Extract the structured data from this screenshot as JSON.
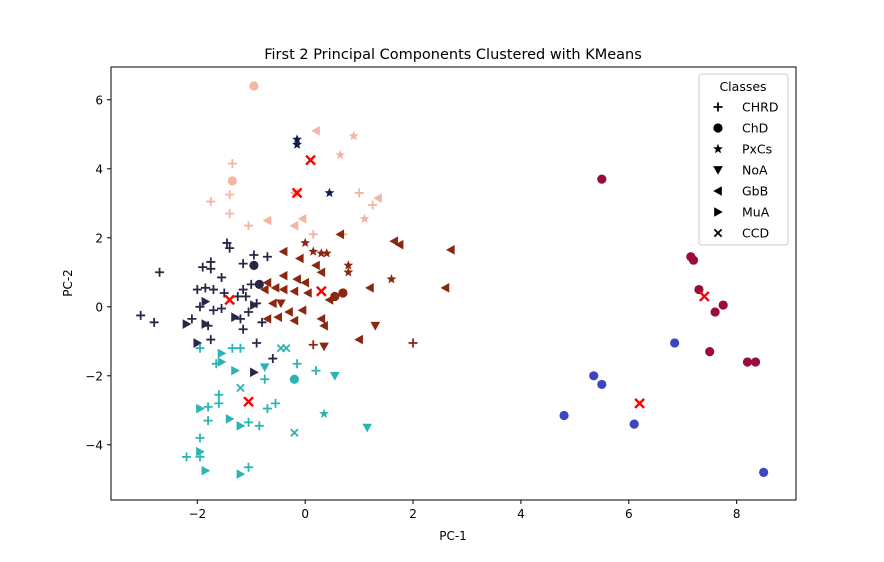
{
  "chart_data": {
    "type": "scatter",
    "title": "First 2 Principal Components Clustered with KMeans",
    "xlabel": "PC-1",
    "ylabel": "PC-2",
    "xlim": [
      -3.6,
      9.1
    ],
    "ylim": [
      -5.6,
      6.95
    ],
    "xticks": [
      -2,
      0,
      2,
      4,
      6,
      8
    ],
    "yticks": [
      -4,
      -2,
      0,
      2,
      4,
      6
    ],
    "grid": false,
    "legend": {
      "title": "Classes",
      "placement": "top-right",
      "entries": [
        {
          "label": "CHRD",
          "marker": "plus"
        },
        {
          "label": "ChD",
          "marker": "circle"
        },
        {
          "label": "PxCs",
          "marker": "star"
        },
        {
          "label": "NoA",
          "marker": "triangle-down"
        },
        {
          "label": "GbB",
          "marker": "triangle-left"
        },
        {
          "label": "MuA",
          "marker": "triangle-right"
        },
        {
          "label": "CCD",
          "marker": "x"
        }
      ]
    },
    "cluster_colors": {
      "dark_navy": "#2b2645",
      "dark_red": "#8b2610",
      "teal": "#2ab4b4",
      "peach": "#f5b4a4",
      "crimson": "#9b0c3a",
      "blue": "#3c46c0",
      "navy": "#0e1c4c",
      "center": "#ff0000"
    },
    "centers": [
      {
        "x": 0.1,
        "y": 4.25
      },
      {
        "x": -0.15,
        "y": 3.3
      },
      {
        "x": -1.4,
        "y": 0.2
      },
      {
        "x": 0.3,
        "y": 0.45
      },
      {
        "x": -1.05,
        "y": -2.75
      },
      {
        "x": 7.4,
        "y": 0.3
      },
      {
        "x": 6.2,
        "y": -2.8
      }
    ],
    "points": [
      {
        "x": -0.95,
        "y": 6.4,
        "m": "circle",
        "c": "peach"
      },
      {
        "x": -1.35,
        "y": 3.65,
        "m": "circle",
        "c": "peach"
      },
      {
        "x": -1.35,
        "y": 4.15,
        "m": "plus",
        "c": "peach"
      },
      {
        "x": -1.75,
        "y": 3.05,
        "m": "plus",
        "c": "peach"
      },
      {
        "x": -1.4,
        "y": 3.25,
        "m": "plus",
        "c": "peach"
      },
      {
        "x": -1.4,
        "y": 2.7,
        "m": "plus",
        "c": "peach"
      },
      {
        "x": -1.05,
        "y": 2.35,
        "m": "plus",
        "c": "peach"
      },
      {
        "x": -0.7,
        "y": 2.5,
        "m": "tri-left",
        "c": "peach"
      },
      {
        "x": -0.2,
        "y": 2.35,
        "m": "tri-left",
        "c": "peach"
      },
      {
        "x": -0.2,
        "y": 3.3,
        "m": "tri-left",
        "c": "peach"
      },
      {
        "x": 0.2,
        "y": 5.1,
        "m": "tri-left",
        "c": "peach"
      },
      {
        "x": 0.65,
        "y": 4.4,
        "m": "star",
        "c": "peach"
      },
      {
        "x": 0.9,
        "y": 4.95,
        "m": "star",
        "c": "peach"
      },
      {
        "x": -0.05,
        "y": 2.55,
        "m": "tri-left",
        "c": "peach"
      },
      {
        "x": 0.15,
        "y": 2.1,
        "m": "plus",
        "c": "peach"
      },
      {
        "x": 0.7,
        "y": 2.1,
        "m": "plus",
        "c": "peach"
      },
      {
        "x": 1.0,
        "y": 3.3,
        "m": "plus",
        "c": "peach"
      },
      {
        "x": 1.1,
        "y": 2.55,
        "m": "star",
        "c": "peach"
      },
      {
        "x": 1.25,
        "y": 2.95,
        "m": "plus",
        "c": "peach"
      },
      {
        "x": 1.35,
        "y": 3.15,
        "m": "tri-left",
        "c": "peach"
      },
      {
        "x": -0.15,
        "y": 4.7,
        "m": "star",
        "c": "navy"
      },
      {
        "x": -0.15,
        "y": 4.85,
        "m": "star",
        "c": "navy"
      },
      {
        "x": 0.45,
        "y": 3.3,
        "m": "star",
        "c": "navy"
      },
      {
        "x": -2.7,
        "y": 1.0,
        "m": "plus",
        "c": "dark_navy"
      },
      {
        "x": -3.05,
        "y": -0.25,
        "m": "plus",
        "c": "dark_navy"
      },
      {
        "x": -2.8,
        "y": -0.45,
        "m": "plus",
        "c": "dark_navy"
      },
      {
        "x": -2.2,
        "y": -0.5,
        "m": "tri-right",
        "c": "dark_navy"
      },
      {
        "x": -2.1,
        "y": -0.35,
        "m": "plus",
        "c": "dark_navy"
      },
      {
        "x": -1.9,
        "y": 1.15,
        "m": "plus",
        "c": "dark_navy"
      },
      {
        "x": -1.75,
        "y": 1.3,
        "m": "plus",
        "c": "dark_navy"
      },
      {
        "x": -1.75,
        "y": 1.1,
        "m": "plus",
        "c": "dark_navy"
      },
      {
        "x": -1.55,
        "y": 0.85,
        "m": "plus",
        "c": "dark_navy"
      },
      {
        "x": -1.85,
        "y": 0.55,
        "m": "plus",
        "c": "dark_navy"
      },
      {
        "x": -2.0,
        "y": 0.5,
        "m": "plus",
        "c": "dark_navy"
      },
      {
        "x": -1.7,
        "y": 0.5,
        "m": "plus",
        "c": "dark_navy"
      },
      {
        "x": -1.5,
        "y": 0.4,
        "m": "plus",
        "c": "dark_navy"
      },
      {
        "x": -1.85,
        "y": 0.15,
        "m": "tri-right",
        "c": "dark_navy"
      },
      {
        "x": -1.95,
        "y": 0.0,
        "m": "plus",
        "c": "dark_navy"
      },
      {
        "x": -1.7,
        "y": -0.1,
        "m": "plus",
        "c": "dark_navy"
      },
      {
        "x": -1.55,
        "y": -0.05,
        "m": "plus",
        "c": "dark_navy"
      },
      {
        "x": -1.85,
        "y": -0.5,
        "m": "tri-right",
        "c": "dark_navy"
      },
      {
        "x": -1.8,
        "y": -0.55,
        "m": "plus",
        "c": "dark_navy"
      },
      {
        "x": -1.75,
        "y": -0.95,
        "m": "plus",
        "c": "dark_navy"
      },
      {
        "x": -2.0,
        "y": -1.05,
        "m": "tri-right",
        "c": "dark_navy"
      },
      {
        "x": -1.45,
        "y": 1.85,
        "m": "plus",
        "c": "dark_navy"
      },
      {
        "x": -1.4,
        "y": 1.7,
        "m": "plus",
        "c": "dark_navy"
      },
      {
        "x": -1.15,
        "y": 1.25,
        "m": "plus",
        "c": "dark_navy"
      },
      {
        "x": -0.95,
        "y": 1.2,
        "m": "circle",
        "c": "dark_navy"
      },
      {
        "x": -0.95,
        "y": 1.5,
        "m": "plus",
        "c": "dark_navy"
      },
      {
        "x": -0.7,
        "y": 1.45,
        "m": "plus",
        "c": "dark_navy"
      },
      {
        "x": -1.15,
        "y": 0.5,
        "m": "plus",
        "c": "dark_navy"
      },
      {
        "x": -1.0,
        "y": 0.65,
        "m": "plus",
        "c": "dark_navy"
      },
      {
        "x": -0.85,
        "y": 0.65,
        "m": "circle",
        "c": "dark_navy"
      },
      {
        "x": -1.1,
        "y": 0.3,
        "m": "plus",
        "c": "dark_navy"
      },
      {
        "x": -1.25,
        "y": 0.3,
        "m": "plus",
        "c": "dark_navy"
      },
      {
        "x": -0.95,
        "y": 0.05,
        "m": "tri-right",
        "c": "dark_navy"
      },
      {
        "x": -0.9,
        "y": 0.1,
        "m": "plus",
        "c": "dark_navy"
      },
      {
        "x": -1.05,
        "y": -0.15,
        "m": "plus",
        "c": "dark_navy"
      },
      {
        "x": -1.3,
        "y": -0.3,
        "m": "tri-right",
        "c": "dark_navy"
      },
      {
        "x": -1.2,
        "y": -0.35,
        "m": "plus",
        "c": "dark_navy"
      },
      {
        "x": -0.8,
        "y": -0.45,
        "m": "plus",
        "c": "dark_navy"
      },
      {
        "x": -1.15,
        "y": -0.65,
        "m": "plus",
        "c": "dark_navy"
      },
      {
        "x": -0.9,
        "y": -1.05,
        "m": "plus",
        "c": "dark_navy"
      },
      {
        "x": -0.6,
        "y": -1.5,
        "m": "plus",
        "c": "dark_navy"
      },
      {
        "x": -0.95,
        "y": -1.9,
        "m": "tri-right",
        "c": "dark_navy"
      },
      {
        "x": -0.75,
        "y": 0.5,
        "m": "tri-left",
        "c": "dark_red"
      },
      {
        "x": -0.7,
        "y": 0.7,
        "m": "tri-left",
        "c": "dark_red"
      },
      {
        "x": -0.55,
        "y": 0.55,
        "m": "tri-left",
        "c": "dark_red"
      },
      {
        "x": -0.4,
        "y": 0.5,
        "m": "tri-left",
        "c": "dark_red"
      },
      {
        "x": -0.4,
        "y": 0.9,
        "m": "tri-left",
        "c": "dark_red"
      },
      {
        "x": -0.4,
        "y": 1.6,
        "m": "tri-left",
        "c": "dark_red"
      },
      {
        "x": -0.1,
        "y": 1.4,
        "m": "tri-left",
        "c": "dark_red"
      },
      {
        "x": 0.0,
        "y": 1.85,
        "m": "star",
        "c": "dark_red"
      },
      {
        "x": 0.15,
        "y": 1.6,
        "m": "star",
        "c": "dark_red"
      },
      {
        "x": 0.3,
        "y": 1.55,
        "m": "star",
        "c": "dark_red"
      },
      {
        "x": 0.4,
        "y": 1.55,
        "m": "star",
        "c": "dark_red"
      },
      {
        "x": 0.2,
        "y": 1.2,
        "m": "tri-left",
        "c": "dark_red"
      },
      {
        "x": 0.3,
        "y": 1.0,
        "m": "tri-left",
        "c": "dark_red"
      },
      {
        "x": -0.15,
        "y": 0.8,
        "m": "tri-left",
        "c": "dark_red"
      },
      {
        "x": 0.0,
        "y": 0.7,
        "m": "tri-left",
        "c": "dark_red"
      },
      {
        "x": -0.2,
        "y": 0.45,
        "m": "tri-left",
        "c": "dark_red"
      },
      {
        "x": 0.05,
        "y": 0.4,
        "m": "tri-left",
        "c": "dark_red"
      },
      {
        "x": -0.6,
        "y": 0.1,
        "m": "tri-left",
        "c": "dark_red"
      },
      {
        "x": -0.45,
        "y": 0.1,
        "m": "tri-down",
        "c": "dark_red"
      },
      {
        "x": -0.3,
        "y": -0.15,
        "m": "tri-left",
        "c": "dark_red"
      },
      {
        "x": -0.5,
        "y": -0.3,
        "m": "tri-left",
        "c": "dark_red"
      },
      {
        "x": -0.7,
        "y": -0.35,
        "m": "tri-left",
        "c": "dark_red"
      },
      {
        "x": -0.2,
        "y": -0.4,
        "m": "tri-left",
        "c": "dark_red"
      },
      {
        "x": -0.05,
        "y": -0.1,
        "m": "tri-left",
        "c": "dark_red"
      },
      {
        "x": 0.3,
        "y": -0.35,
        "m": "tri-left",
        "c": "dark_red"
      },
      {
        "x": 0.35,
        "y": -0.55,
        "m": "tri-left",
        "c": "dark_red"
      },
      {
        "x": 0.35,
        "y": -1.15,
        "m": "tri-down",
        "c": "dark_red"
      },
      {
        "x": 0.15,
        "y": -1.1,
        "m": "plus",
        "c": "dark_red"
      },
      {
        "x": 0.45,
        "y": 0.2,
        "m": "tri-left",
        "c": "dark_red"
      },
      {
        "x": 0.55,
        "y": 0.3,
        "m": "circle",
        "c": "dark_red"
      },
      {
        "x": 0.7,
        "y": 0.4,
        "m": "circle",
        "c": "dark_red"
      },
      {
        "x": 0.65,
        "y": 2.1,
        "m": "tri-left",
        "c": "dark_red"
      },
      {
        "x": 0.8,
        "y": 1.2,
        "m": "star",
        "c": "dark_red"
      },
      {
        "x": 0.8,
        "y": 1.0,
        "m": "star",
        "c": "dark_red"
      },
      {
        "x": 1.0,
        "y": -0.95,
        "m": "tri-left",
        "c": "dark_red"
      },
      {
        "x": 1.2,
        "y": 0.55,
        "m": "tri-left",
        "c": "dark_red"
      },
      {
        "x": 1.3,
        "y": -0.55,
        "m": "tri-down",
        "c": "dark_red"
      },
      {
        "x": 1.6,
        "y": 0.8,
        "m": "star",
        "c": "dark_red"
      },
      {
        "x": 1.65,
        "y": 1.9,
        "m": "tri-left",
        "c": "dark_red"
      },
      {
        "x": 1.75,
        "y": 1.8,
        "m": "tri-left",
        "c": "dark_red"
      },
      {
        "x": 2.0,
        "y": -1.05,
        "m": "plus",
        "c": "dark_red"
      },
      {
        "x": 2.6,
        "y": 0.55,
        "m": "tri-left",
        "c": "dark_red"
      },
      {
        "x": 2.7,
        "y": 1.65,
        "m": "tri-left",
        "c": "dark_red"
      },
      {
        "x": -1.55,
        "y": -1.35,
        "m": "tri-right",
        "c": "teal"
      },
      {
        "x": -1.35,
        "y": -1.2,
        "m": "plus",
        "c": "teal"
      },
      {
        "x": -1.2,
        "y": -1.2,
        "m": "plus",
        "c": "teal"
      },
      {
        "x": -1.95,
        "y": -1.2,
        "m": "plus",
        "c": "teal"
      },
      {
        "x": -1.65,
        "y": -1.65,
        "m": "plus",
        "c": "teal"
      },
      {
        "x": -1.55,
        "y": -1.6,
        "m": "tri-right",
        "c": "teal"
      },
      {
        "x": -1.3,
        "y": -1.85,
        "m": "tri-right",
        "c": "teal"
      },
      {
        "x": -0.75,
        "y": -1.75,
        "m": "tri-down",
        "c": "teal"
      },
      {
        "x": -0.45,
        "y": -1.2,
        "m": "x",
        "c": "teal"
      },
      {
        "x": -0.35,
        "y": -1.2,
        "m": "x",
        "c": "teal"
      },
      {
        "x": -0.15,
        "y": -1.65,
        "m": "plus",
        "c": "teal"
      },
      {
        "x": -0.2,
        "y": -2.1,
        "m": "circle",
        "c": "teal"
      },
      {
        "x": -0.75,
        "y": -2.1,
        "m": "plus",
        "c": "teal"
      },
      {
        "x": 0.2,
        "y": -1.85,
        "m": "plus",
        "c": "teal"
      },
      {
        "x": 0.55,
        "y": -2.0,
        "m": "tri-down",
        "c": "teal"
      },
      {
        "x": -1.2,
        "y": -2.35,
        "m": "x",
        "c": "teal"
      },
      {
        "x": -1.6,
        "y": -2.55,
        "m": "plus",
        "c": "teal"
      },
      {
        "x": -1.6,
        "y": -2.8,
        "m": "plus",
        "c": "teal"
      },
      {
        "x": -1.8,
        "y": -2.9,
        "m": "plus",
        "c": "teal"
      },
      {
        "x": -1.95,
        "y": -2.95,
        "m": "tri-right",
        "c": "teal"
      },
      {
        "x": -1.8,
        "y": -3.3,
        "m": "plus",
        "c": "teal"
      },
      {
        "x": -1.4,
        "y": -3.25,
        "m": "tri-right",
        "c": "teal"
      },
      {
        "x": -0.7,
        "y": -2.95,
        "m": "plus",
        "c": "teal"
      },
      {
        "x": -0.55,
        "y": -2.8,
        "m": "plus",
        "c": "teal"
      },
      {
        "x": -1.2,
        "y": -3.45,
        "m": "tri-right",
        "c": "teal"
      },
      {
        "x": -1.05,
        "y": -3.35,
        "m": "plus",
        "c": "teal"
      },
      {
        "x": -0.85,
        "y": -3.45,
        "m": "plus",
        "c": "teal"
      },
      {
        "x": 0.35,
        "y": -3.1,
        "m": "star",
        "c": "teal"
      },
      {
        "x": -0.2,
        "y": -3.65,
        "m": "x",
        "c": "teal"
      },
      {
        "x": 1.15,
        "y": -3.5,
        "m": "tri-down",
        "c": "teal"
      },
      {
        "x": -1.95,
        "y": -3.8,
        "m": "plus",
        "c": "teal"
      },
      {
        "x": -1.95,
        "y": -4.2,
        "m": "tri-right",
        "c": "teal"
      },
      {
        "x": -2.2,
        "y": -4.35,
        "m": "plus",
        "c": "teal"
      },
      {
        "x": -1.95,
        "y": -4.35,
        "m": "plus",
        "c": "teal"
      },
      {
        "x": -1.85,
        "y": -4.75,
        "m": "tri-right",
        "c": "teal"
      },
      {
        "x": -1.05,
        "y": -4.65,
        "m": "plus",
        "c": "teal"
      },
      {
        "x": -1.2,
        "y": -4.85,
        "m": "tri-right",
        "c": "teal"
      },
      {
        "x": 5.5,
        "y": 3.7,
        "m": "circle",
        "c": "crimson"
      },
      {
        "x": 7.15,
        "y": 1.45,
        "m": "circle",
        "c": "crimson"
      },
      {
        "x": 7.2,
        "y": 1.35,
        "m": "circle",
        "c": "crimson"
      },
      {
        "x": 7.3,
        "y": 0.5,
        "m": "circle",
        "c": "crimson"
      },
      {
        "x": 7.75,
        "y": 0.05,
        "m": "circle",
        "c": "crimson"
      },
      {
        "x": 7.6,
        "y": -0.15,
        "m": "circle",
        "c": "crimson"
      },
      {
        "x": 7.5,
        "y": -1.3,
        "m": "circle",
        "c": "crimson"
      },
      {
        "x": 8.2,
        "y": -1.6,
        "m": "circle",
        "c": "crimson"
      },
      {
        "x": 8.35,
        "y": -1.6,
        "m": "circle",
        "c": "crimson"
      },
      {
        "x": 6.85,
        "y": -1.05,
        "m": "circle",
        "c": "blue"
      },
      {
        "x": 5.35,
        "y": -2.0,
        "m": "circle",
        "c": "blue"
      },
      {
        "x": 5.5,
        "y": -2.25,
        "m": "circle",
        "c": "blue"
      },
      {
        "x": 4.8,
        "y": -3.15,
        "m": "circle",
        "c": "blue"
      },
      {
        "x": 6.1,
        "y": -3.4,
        "m": "circle",
        "c": "blue"
      },
      {
        "x": 8.5,
        "y": -4.8,
        "m": "circle",
        "c": "blue"
      }
    ]
  }
}
